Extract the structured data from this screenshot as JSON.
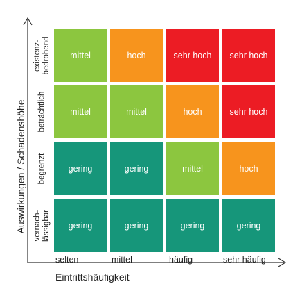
{
  "axes": {
    "x_title": "Eintrittshäufigkeit",
    "y_title": "Auswirkungen / Schadenshöhe"
  },
  "x_labels": [
    "selten",
    "mittel",
    "häufig",
    "sehr häufig"
  ],
  "y_labels": [
    "existenz-\nbedrohend",
    "beträchtlich",
    "begrenzt",
    "vernach-\nlässigbar"
  ],
  "colors": {
    "gering": "#16967a",
    "mittel": "#8cc63f",
    "hoch": "#f7941d",
    "sehr hoch": "#ec1c24"
  },
  "matrix": [
    [
      "mittel",
      "hoch",
      "sehr hoch",
      "sehr hoch"
    ],
    [
      "mittel",
      "mittel",
      "hoch",
      "sehr hoch"
    ],
    [
      "gering",
      "gering",
      "mittel",
      "hoch"
    ],
    [
      "gering",
      "gering",
      "gering",
      "gering"
    ]
  ]
}
